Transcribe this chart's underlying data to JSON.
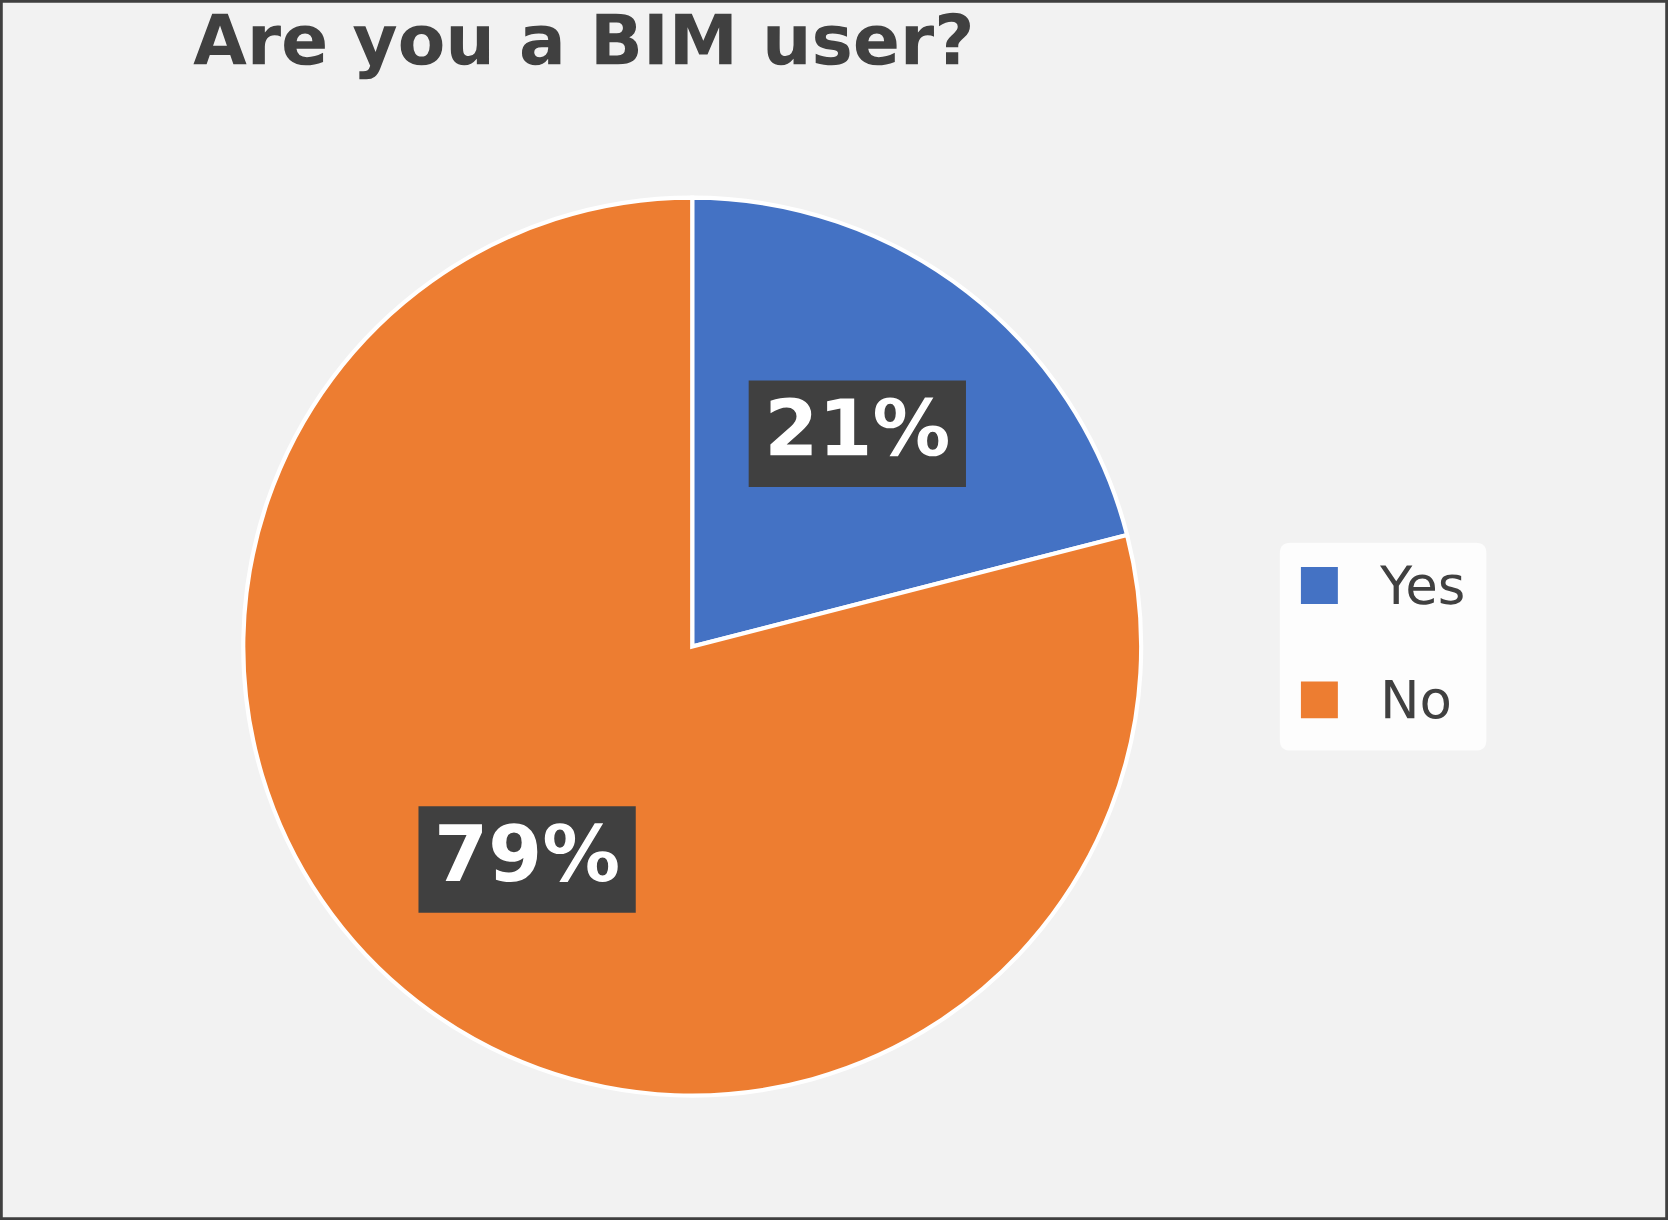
{
  "chart_data": {
    "type": "pie",
    "title": "Are you a BIM user?",
    "categories": [
      "Yes",
      "No"
    ],
    "values": [
      21,
      79
    ],
    "colors": [
      "#4472c4",
      "#ed7d31"
    ],
    "value_labels": [
      "21%",
      "79%"
    ],
    "legend": "right"
  }
}
